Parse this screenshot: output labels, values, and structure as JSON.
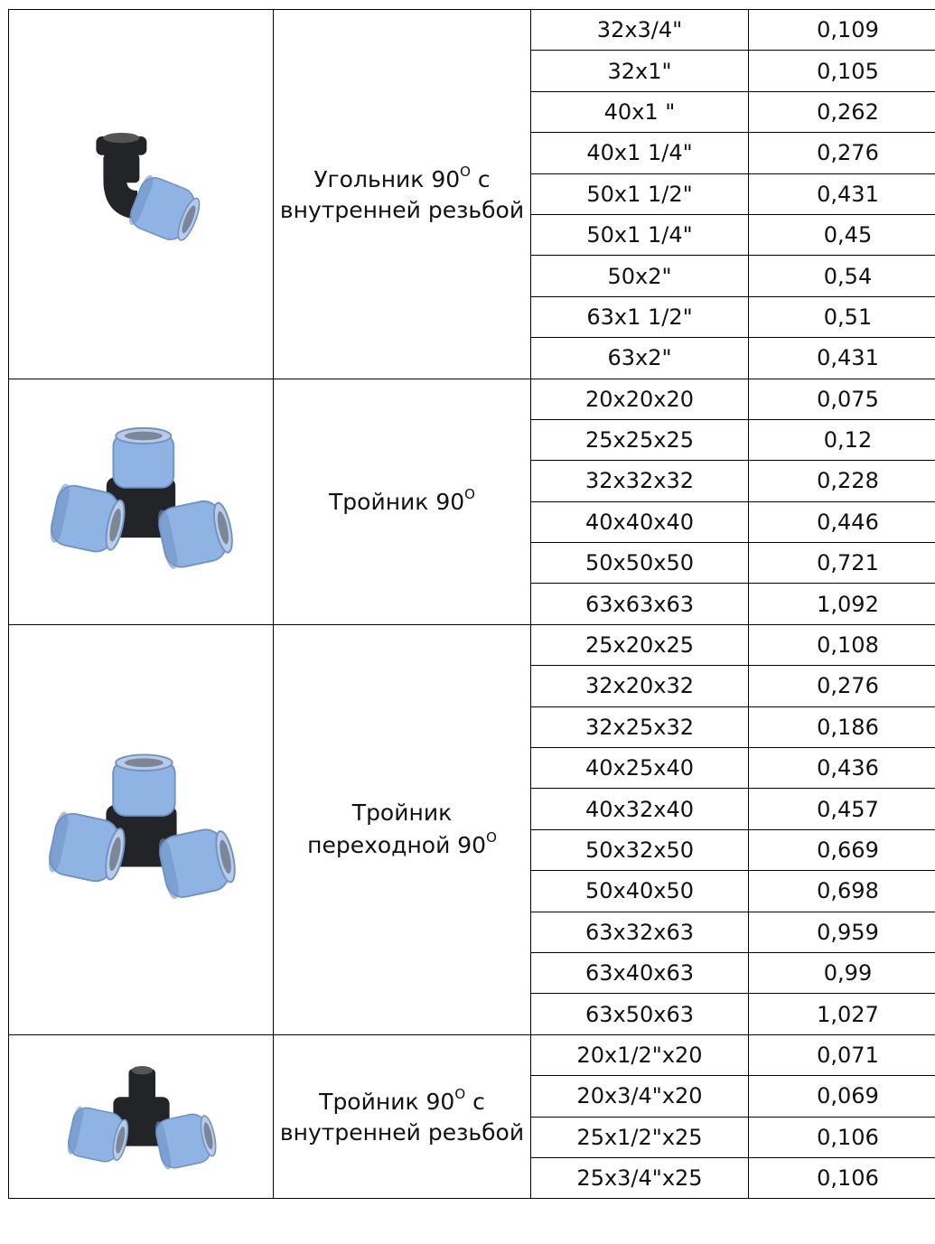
{
  "groups": [
    {
      "name": "Угольник 90° с внутренней резьбой",
      "name_lines": [
        [
          "Угольник 90",
          "O",
          " с"
        ],
        [
          "внутренней резьбой",
          "",
          ""
        ]
      ],
      "image": "elbow-90-female-thread-icon",
      "rows": [
        {
          "size": "32x3/4\"",
          "weight": "0,109"
        },
        {
          "size": "32x1\"",
          "weight": "0,105"
        },
        {
          "size": "40x1 \"",
          "weight": "0,262"
        },
        {
          "size": "40x1 1/4\"",
          "weight": "0,276"
        },
        {
          "size": "50x1 1/2\"",
          "weight": "0,431"
        },
        {
          "size": "50x1 1/4\"",
          "weight": "0,45"
        },
        {
          "size": "50x2\"",
          "weight": "0,54"
        },
        {
          "size": "63x1 1/2\"",
          "weight": "0,51"
        },
        {
          "size": "63x2\"",
          "weight": "0,431"
        }
      ]
    },
    {
      "name": "Тройник 90°",
      "name_lines": [
        [
          "Тройник 90",
          "O",
          ""
        ]
      ],
      "image": "tee-90-icon",
      "rows": [
        {
          "size": "20x20x20",
          "weight": "0,075"
        },
        {
          "size": "25x25x25",
          "weight": "0,12"
        },
        {
          "size": "32x32x32",
          "weight": "0,228"
        },
        {
          "size": "40x40x40",
          "weight": "0,446"
        },
        {
          "size": "50x50x50",
          "weight": "0,721"
        },
        {
          "size": "63x63x63",
          "weight": "1,092"
        }
      ]
    },
    {
      "name": "Тройник переходной 90°",
      "name_lines": [
        [
          "Тройник",
          "",
          ""
        ],
        [
          "переходной 90",
          "O",
          ""
        ]
      ],
      "image": "reducing-tee-90-icon",
      "rows": [
        {
          "size": "25x20x25",
          "weight": "0,108"
        },
        {
          "size": "32x20x32",
          "weight": "0,276"
        },
        {
          "size": "32x25x32",
          "weight": "0,186"
        },
        {
          "size": "40x25x40",
          "weight": "0,436"
        },
        {
          "size": "40x32x40",
          "weight": "0,457"
        },
        {
          "size": "50x32x50",
          "weight": "0,669"
        },
        {
          "size": "50x40x50",
          "weight": "0,698"
        },
        {
          "size": "63x32x63",
          "weight": "0,959"
        },
        {
          "size": "63x40x63",
          "weight": "0,99"
        },
        {
          "size": "63x50x63",
          "weight": "1,027"
        }
      ]
    },
    {
      "name": "Тройник 90° с внутренней резьбой",
      "name_lines": [
        [
          "Тройник 90",
          "O",
          " с"
        ],
        [
          "внутренней резьбой",
          "",
          ""
        ]
      ],
      "image": "tee-90-female-thread-icon",
      "rows": [
        {
          "size": "20x1/2\"x20",
          "weight": "0,071"
        },
        {
          "size": "20x3/4\"x20",
          "weight": "0,069"
        },
        {
          "size": "25x1/2\"x25",
          "weight": "0,106"
        },
        {
          "size": "25x3/4\"x25",
          "weight": "0,106"
        }
      ]
    }
  ],
  "colors": {
    "blue": "#8fb3e3",
    "blue_dark": "#6f93c6",
    "black": "#222428"
  }
}
